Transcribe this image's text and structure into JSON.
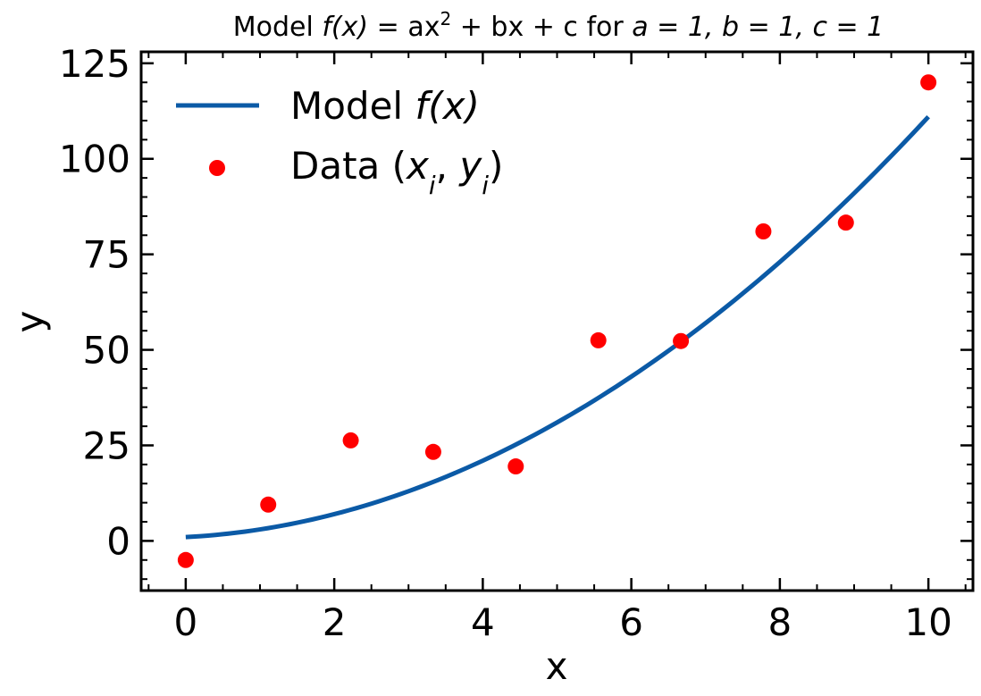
{
  "chart_data": {
    "type": "scatter",
    "title": {
      "prefix": "Model ",
      "fx": "f(x)",
      "eq": " = ax",
      "sup": "2",
      "rest": " + bx + c",
      "for_text": " for ",
      "a_part": "a = 1, ",
      "b_part": "b = 1, ",
      "c_part": "c = 1"
    },
    "xlabel": "x",
    "ylabel": "y",
    "xlim": [
      -0.6,
      10.6
    ],
    "ylim": [
      -13,
      128
    ],
    "x_ticks": [
      0,
      2,
      4,
      6,
      8,
      10
    ],
    "y_ticks": [
      0,
      25,
      50,
      75,
      100,
      125
    ],
    "x_ticks_labels": [
      "0",
      "2",
      "4",
      "6",
      "8",
      "10"
    ],
    "y_ticks_labels": [
      "0",
      "25",
      "50",
      "75",
      "100",
      "125"
    ],
    "grid": false,
    "legend_position": "upper-left",
    "series": [
      {
        "kind": "line",
        "legend": {
          "plain": "Model ",
          "math": "f(x)"
        },
        "color": "#0b5aa6",
        "model": {
          "a": 1,
          "b": 1,
          "c": 1
        },
        "x_range": [
          0,
          10
        ]
      },
      {
        "kind": "scatter",
        "legend": {
          "plain": "Data (",
          "math": "x",
          "sub1": "i",
          "comma": ", ",
          "math2": "y",
          "sub2": "i",
          "close": ")"
        },
        "color": "#ff0000",
        "x": [
          0,
          1.111,
          2.222,
          3.333,
          4.444,
          5.556,
          6.667,
          7.778,
          8.889,
          10
        ],
        "y": [
          -5,
          9.5,
          26.3,
          23.3,
          19.5,
          52.5,
          52.3,
          81.0,
          83.3,
          120.0
        ]
      }
    ]
  }
}
